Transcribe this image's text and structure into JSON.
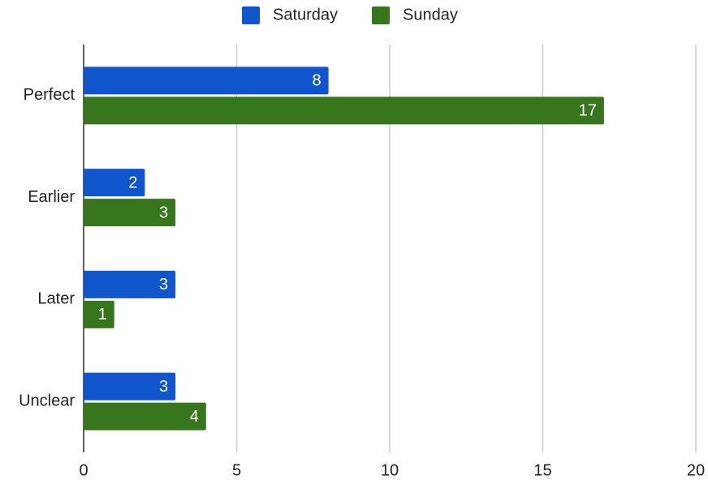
{
  "chart_data": {
    "type": "bar",
    "orientation": "horizontal",
    "categories": [
      "Perfect",
      "Earlier",
      "Later",
      "Unclear"
    ],
    "series": [
      {
        "name": "Saturday",
        "color": "#1155cc",
        "values": [
          8,
          2,
          3,
          3
        ]
      },
      {
        "name": "Sunday",
        "color": "#38761d",
        "values": [
          17,
          3,
          1,
          4
        ]
      }
    ],
    "xlim": [
      0,
      20
    ],
    "xticks": [
      0,
      5,
      10,
      15,
      20
    ],
    "grid": true,
    "legend": "top"
  }
}
